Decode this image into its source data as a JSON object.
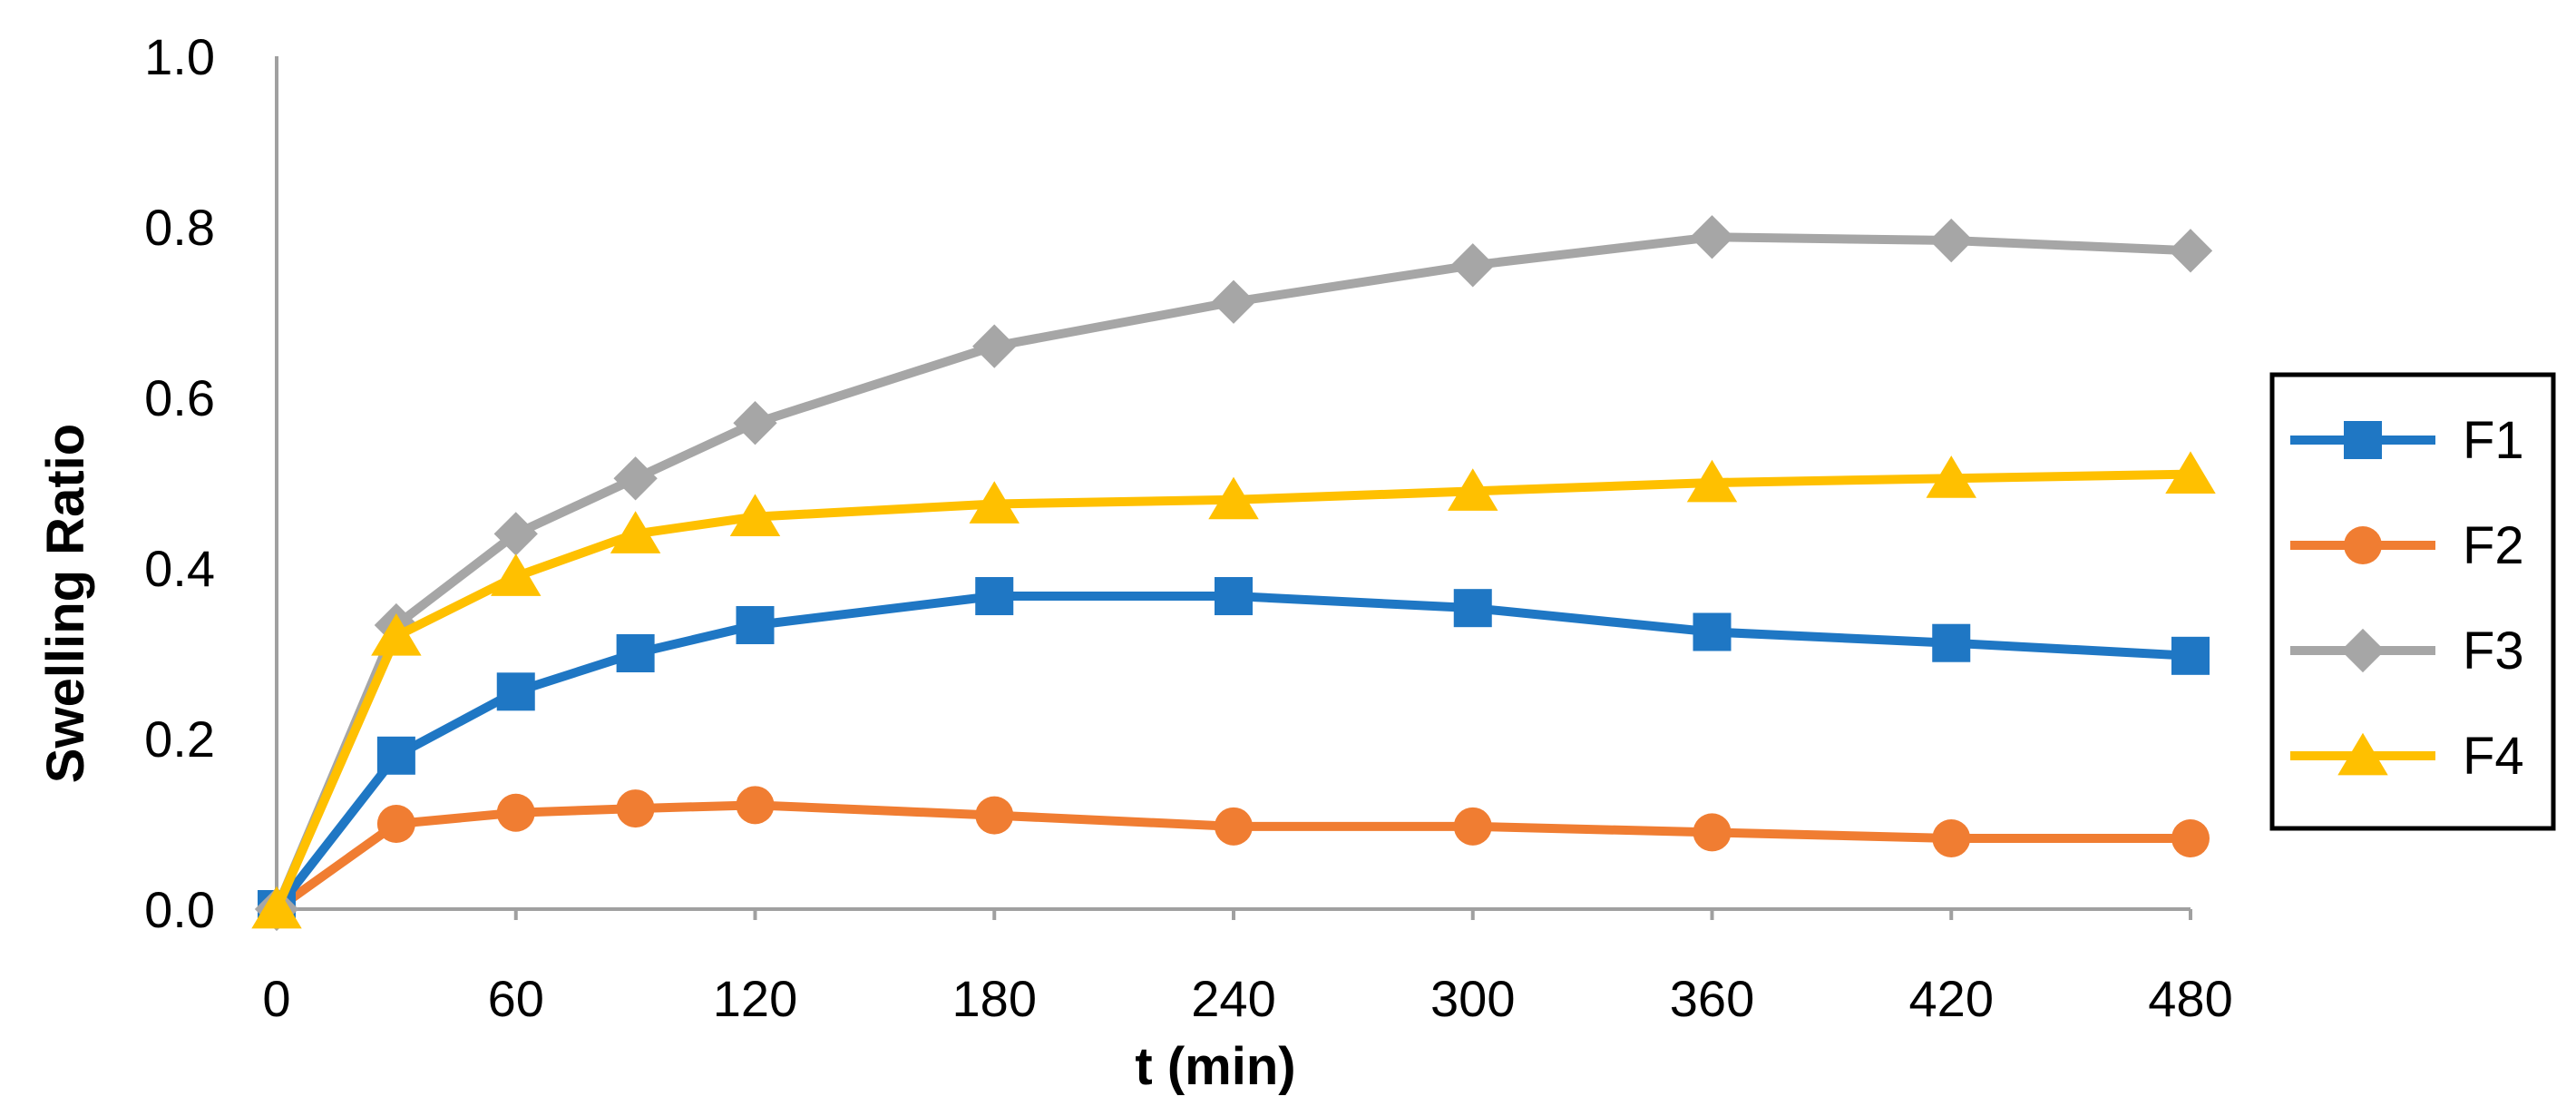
{
  "chart_data": {
    "type": "line",
    "title": "",
    "xlabel": "t (min)",
    "ylabel": "Swelling Ratio",
    "xlim": [
      0,
      480
    ],
    "ylim": [
      0,
      1.0
    ],
    "x_ticks": [
      "0",
      "60",
      "120",
      "180",
      "240",
      "300",
      "360",
      "420",
      "480"
    ],
    "y_ticks": [
      "0.0",
      "0.2",
      "0.4",
      "0.6",
      "0.8",
      "1.0"
    ],
    "x": [
      0,
      30,
      60,
      90,
      120,
      180,
      240,
      300,
      360,
      420,
      480
    ],
    "legend_position": "right",
    "series": [
      {
        "name": "F1",
        "color": "#1F77C4",
        "marker": "square",
        "values": [
          0.0,
          0.18,
          0.255,
          0.3,
          0.333,
          0.367,
          0.367,
          0.353,
          0.325,
          0.312,
          0.297
        ]
      },
      {
        "name": "F2",
        "color": "#F07D32",
        "marker": "circle",
        "values": [
          0.0,
          0.1,
          0.113,
          0.118,
          0.122,
          0.11,
          0.097,
          0.097,
          0.09,
          0.083,
          0.083
        ]
      },
      {
        "name": "F3",
        "color": "#A6A6A6",
        "marker": "diamond",
        "values": [
          0.0,
          0.333,
          0.44,
          0.505,
          0.57,
          0.66,
          0.712,
          0.755,
          0.788,
          0.784,
          0.772
        ]
      },
      {
        "name": "F4",
        "color": "#FFC000",
        "marker": "triangle",
        "values": [
          0.0,
          0.32,
          0.39,
          0.44,
          0.46,
          0.475,
          0.48,
          0.49,
          0.5,
          0.505,
          0.51
        ]
      }
    ]
  }
}
